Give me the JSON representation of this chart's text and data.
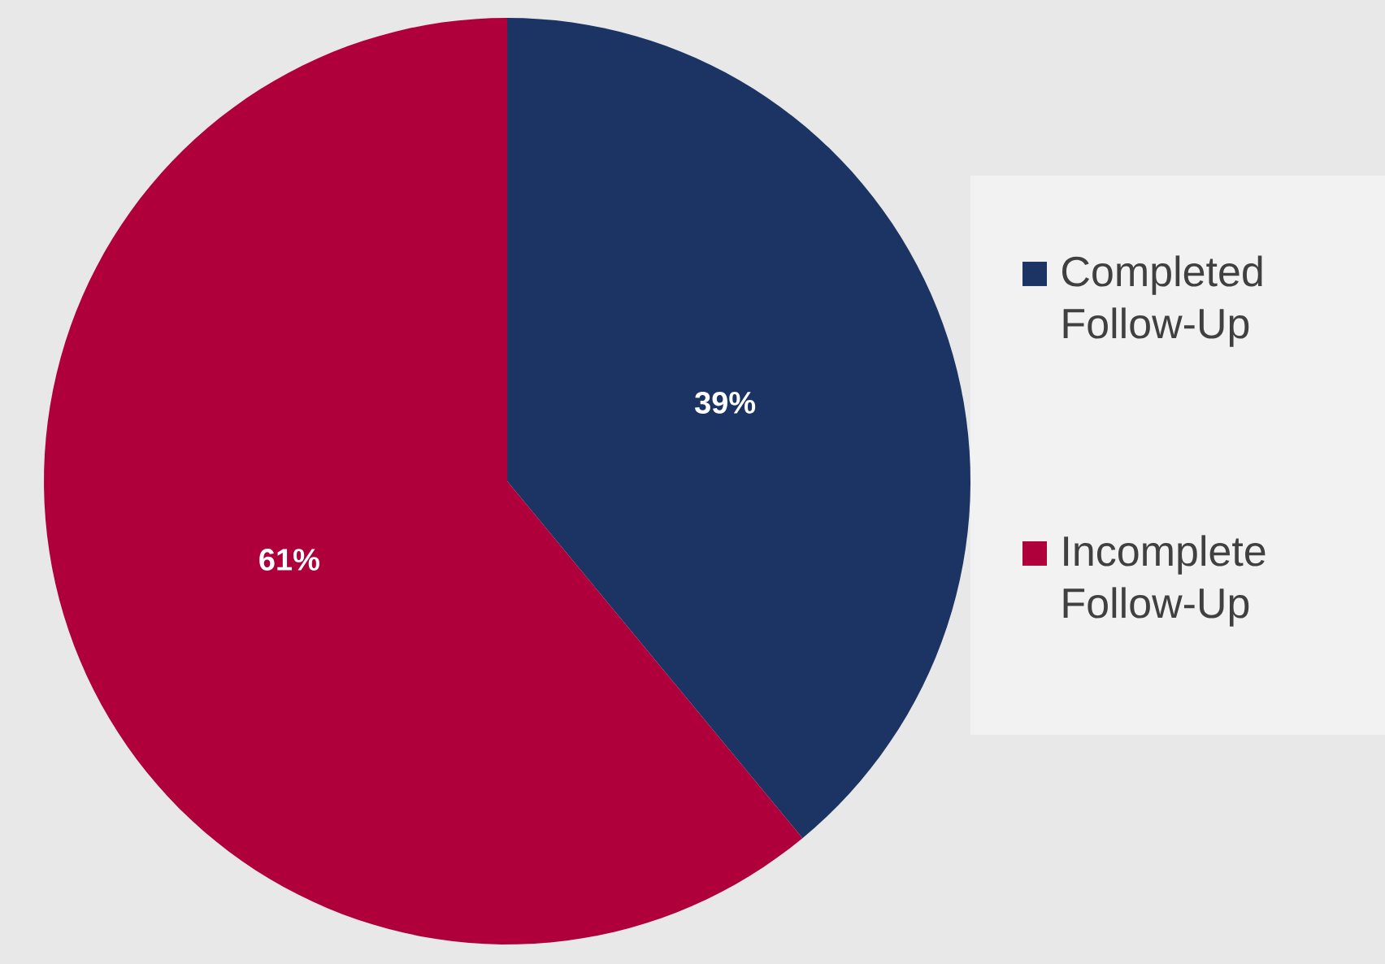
{
  "chart_data": {
    "type": "pie",
    "categories": [
      "Completed Follow-Up",
      "Incomplete Follow-Up"
    ],
    "values": [
      39,
      61
    ],
    "colors": [
      "#1c3464",
      "#b0003c"
    ],
    "value_labels": [
      "39%",
      "61%"
    ],
    "legend": "right"
  }
}
